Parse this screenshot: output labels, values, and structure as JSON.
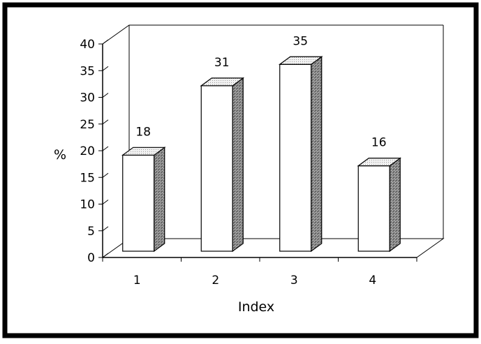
{
  "chart_data": {
    "type": "bar",
    "categories": [
      "1",
      "2",
      "3",
      "4"
    ],
    "values": [
      18,
      31,
      35,
      16
    ],
    "value_labels": [
      "18",
      "31",
      "35",
      "16"
    ],
    "xlabel": "Index",
    "ylabel": "%",
    "ylim": [
      0,
      40
    ],
    "yticks": [
      "0",
      "5",
      "10",
      "15",
      "20",
      "25",
      "30",
      "35",
      "40"
    ],
    "style": "3d",
    "grid": false
  }
}
